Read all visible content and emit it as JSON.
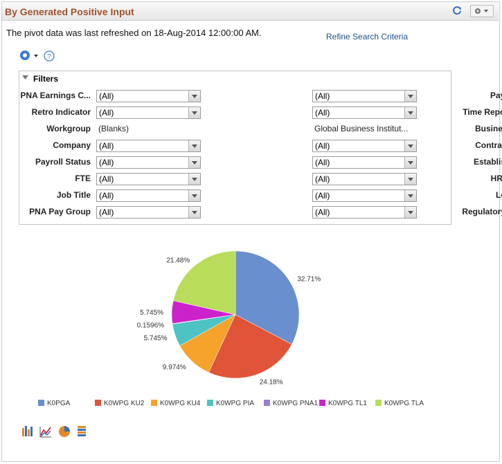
{
  "header": {
    "title": "By Generated Positive Input"
  },
  "refresh_text": "The pivot data was last refreshed on 18-Aug-2014 12:00:00 AM.",
  "link": "Refine Search Criteria",
  "filters": {
    "title": "Filters",
    "left": [
      {
        "label": "PNA Earnings C...",
        "value": "(All)",
        "dropdown": true
      },
      {
        "label": "Retro Indicator",
        "value": "(All)",
        "dropdown": true
      },
      {
        "label": "Workgroup",
        "value": "(Blanks)",
        "dropdown": false
      },
      {
        "label": "Company",
        "value": "(All)",
        "dropdown": true
      },
      {
        "label": "Payroll Status",
        "value": "(All)",
        "dropdown": true
      },
      {
        "label": "FTE",
        "value": "(All)",
        "dropdown": true
      },
      {
        "label": "Job Title",
        "value": "(All)",
        "dropdown": true
      },
      {
        "label": "PNA Pay Group",
        "value": "(All)",
        "dropdown": true
      }
    ],
    "right": [
      {
        "label": "Pay Entity",
        "value": "(All)",
        "dropdown": true
      },
      {
        "label": "Time Reporting...",
        "value": "(All)",
        "dropdown": true
      },
      {
        "label": "Business Unit",
        "value": "Global Business Institut...",
        "dropdown": false
      },
      {
        "label": "Contract Type",
        "value": "(All)",
        "dropdown": true
      },
      {
        "label": "Establishment",
        "value": "(All)",
        "dropdown": true
      },
      {
        "label": "HR Status",
        "value": "(All)",
        "dropdown": true
      },
      {
        "label": "Location",
        "value": "(All)",
        "dropdown": true
      },
      {
        "label": "Regulatory Reg...",
        "value": "(All)",
        "dropdown": true
      }
    ]
  },
  "chart_data": {
    "type": "pie",
    "categories": [
      "K0PGA",
      "K0WPG KU2",
      "K0WPG KU4",
      "K0WPG PIA",
      "K0WPG PNA1",
      "K0WPG TL1",
      "K0WPG TLA"
    ],
    "values": [
      32.71,
      24.18,
      9.974,
      5.745,
      0.1596,
      5.745,
      21.48
    ],
    "value_labels": [
      "32.71%",
      "24.18%",
      "9.974%",
      "5.745%",
      "0.1596%",
      "5.745%",
      "21.48%"
    ],
    "colors": [
      "#6a8fcf",
      "#e0553a",
      "#f5a32a",
      "#4ec3c3",
      "#9b7fcf",
      "#cc22cc",
      "#b9dc5a"
    ]
  }
}
